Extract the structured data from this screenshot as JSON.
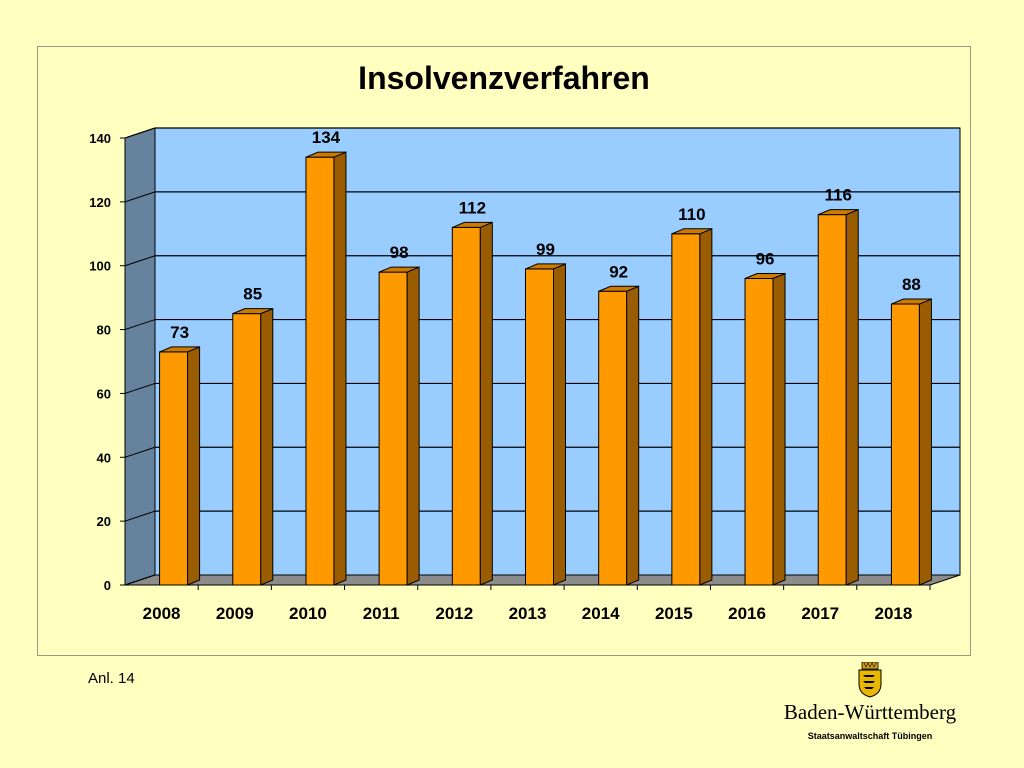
{
  "chart_data": {
    "type": "bar",
    "title": "Insolvenzverfahren",
    "categories": [
      "2008",
      "2009",
      "2010",
      "2011",
      "2012",
      "2013",
      "2014",
      "2015",
      "2016",
      "2017",
      "2018"
    ],
    "values": [
      73,
      85,
      134,
      98,
      112,
      99,
      92,
      110,
      96,
      116,
      88
    ],
    "data_labels": [
      "73",
      "85",
      "134",
      "98",
      "112",
      "99",
      "92",
      "110",
      "96",
      "116",
      "88"
    ],
    "yticks": [
      "0",
      "20",
      "40",
      "60",
      "80",
      "100",
      "120",
      "140"
    ],
    "ylim": [
      0,
      140
    ],
    "grid": true,
    "legend": "none",
    "style": "3d-columns",
    "colors": {
      "bar_front": "#FF9900",
      "bar_side": "#9A5C00",
      "bar_top": "#CC7A00",
      "plot_back": "#99CCFF",
      "side_wall": "#66839E",
      "floor": "#8C8C8C"
    }
  },
  "footer": {
    "annex": "Anl. 14",
    "logo_name": "Baden-Württemberg",
    "logo_sub": "Staatsanwaltschaft Tübingen"
  }
}
